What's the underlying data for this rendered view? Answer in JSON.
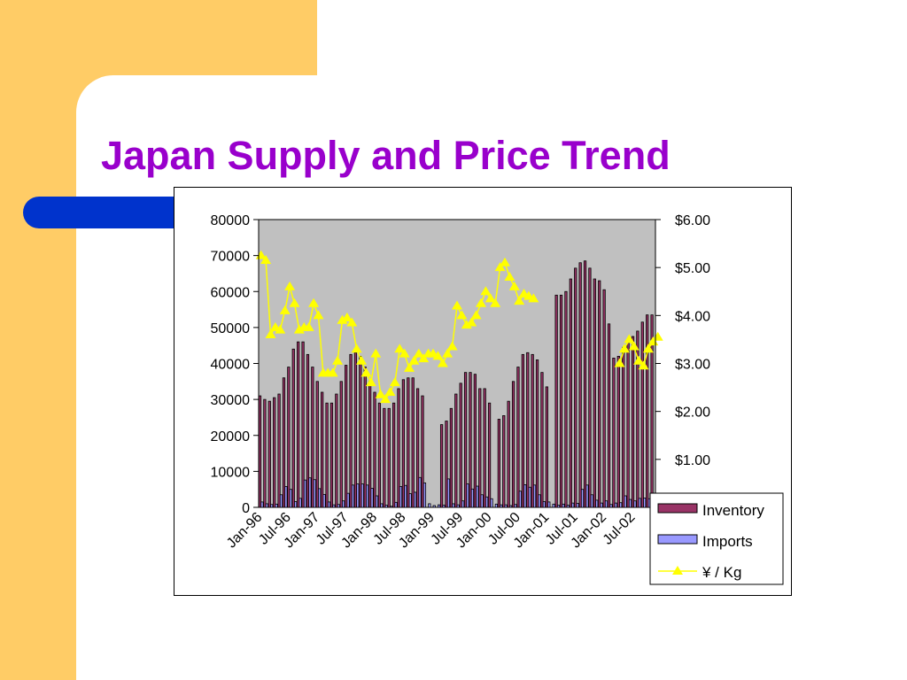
{
  "slide": {
    "title": "Japan Supply and Price Trend",
    "colors": {
      "background": "#FFCC66",
      "panel": "#FFFFFF",
      "accent_bar": "#0033CC",
      "title": "#9900CC"
    }
  },
  "chart_data": {
    "type": "bar",
    "title": "",
    "plot_background": "#C0C0C0",
    "y_left": {
      "ticks": [
        "80000",
        "70000",
        "60000",
        "50000",
        "40000",
        "30000",
        "20000",
        "10000",
        "0"
      ],
      "ylim": [
        0,
        80000
      ]
    },
    "y_right": {
      "ticks": [
        "$6.00",
        "$5.00",
        "$4.00",
        "$3.00",
        "$2.00",
        "$1.00"
      ],
      "ylim": [
        0,
        6
      ]
    },
    "x_ticks": [
      "Jan-96",
      "Jul-96",
      "Jan-97",
      "Jul-97",
      "Jan-98",
      "Jul-98",
      "Jan-99",
      "Jul-99",
      "Jan-00",
      "Jul-00",
      "Jan-01",
      "Jul-01",
      "Jan-02",
      "Jul-02"
    ],
    "legend_position": "bottom-right",
    "series": [
      {
        "name": "Inventory",
        "kind": "bar",
        "axis": "left",
        "color": "#993366",
        "values": [
          31000,
          30000,
          29500,
          30500,
          31500,
          36000,
          39000,
          44000,
          46000,
          46000,
          42500,
          39000,
          35000,
          32000,
          29000,
          29000,
          31500,
          35000,
          39500,
          42500,
          43000,
          42000,
          39000,
          35000,
          32000,
          29000,
          27500,
          27500,
          29000,
          33000,
          35500,
          36000,
          36000,
          33000,
          31000,
          0,
          0,
          0,
          23000,
          24000,
          27500,
          31500,
          34500,
          37500,
          37500,
          37000,
          33000,
          33000,
          29000,
          0,
          24500,
          25500,
          29500,
          35000,
          39000,
          42500,
          43000,
          42500,
          41000,
          37500,
          33500,
          0,
          59000,
          59000,
          60000,
          63500,
          66500,
          68000,
          68500,
          66500,
          63500,
          63000,
          60500,
          51000,
          41500,
          42000,
          44500,
          46000,
          47500,
          49000,
          51500,
          53500,
          53500
        ]
      },
      {
        "name": "Imports",
        "kind": "bar",
        "axis": "left",
        "color": "#9999FF",
        "values": [
          1500,
          1000,
          800,
          900,
          3500,
          5800,
          5000,
          1600,
          2500,
          7600,
          8200,
          7700,
          5200,
          3600,
          1500,
          700,
          800,
          1800,
          3900,
          6200,
          6500,
          6500,
          6200,
          5300,
          3200,
          1000,
          600,
          300,
          1400,
          5800,
          6100,
          3800,
          4200,
          8300,
          6800,
          1000,
          500,
          700,
          600,
          7900,
          1000,
          700,
          1800,
          6500,
          5100,
          5900,
          3500,
          2900,
          2400,
          900,
          700,
          700,
          500,
          800,
          4500,
          6300,
          5600,
          6200,
          3500,
          1600,
          1500,
          900,
          600,
          900,
          600,
          1200,
          1100,
          5000,
          6200,
          3500,
          2000,
          1200,
          1800,
          800,
          1200,
          1300,
          3200,
          2200,
          1800,
          2500,
          2600,
          2400,
          2400
        ]
      },
      {
        "name": "¥ / Kg",
        "kind": "line",
        "axis": "right",
        "color": "#FFFF00",
        "values": [
          5.25,
          5.15,
          3.6,
          3.75,
          3.7,
          4.1,
          4.6,
          4.25,
          3.7,
          3.75,
          3.75,
          4.25,
          4.0,
          2.8,
          2.8,
          2.8,
          3.05,
          3.9,
          3.95,
          3.85,
          3.3,
          3.05,
          2.8,
          2.6,
          3.2,
          2.35,
          2.25,
          2.4,
          2.6,
          3.3,
          3.2,
          2.9,
          3.05,
          3.2,
          3.1,
          3.2,
          3.2,
          3.15,
          3.0,
          3.2,
          3.35,
          4.2,
          4.0,
          3.8,
          3.85,
          4.0,
          4.25,
          4.5,
          4.35,
          4.25,
          5.0,
          5.1,
          4.8,
          4.6,
          4.3,
          4.45,
          4.4,
          4.35,
          null,
          null,
          null,
          null,
          null,
          null,
          null,
          null,
          null,
          null,
          null,
          null,
          null,
          null,
          null,
          null,
          null,
          3.0,
          3.3,
          3.5,
          3.35,
          3.05,
          2.95,
          3.3,
          3.45,
          3.55
        ]
      }
    ]
  }
}
